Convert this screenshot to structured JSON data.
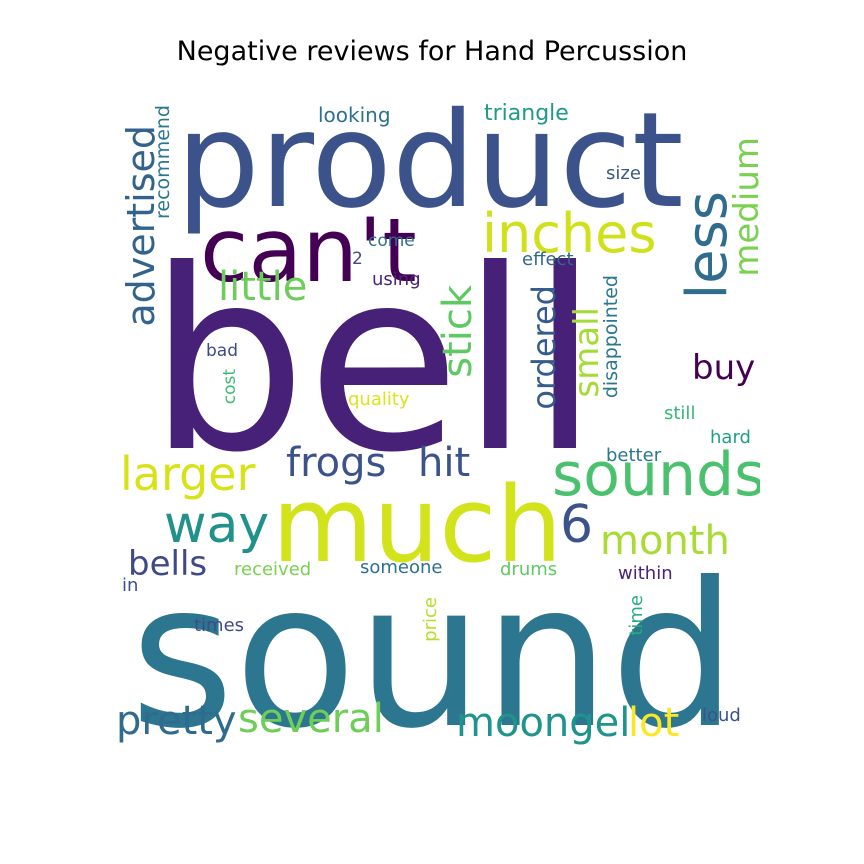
{
  "title": "Negative reviews for Hand Percussion",
  "words": {
    "bell": {
      "text": "bell",
      "color": "#472077"
    },
    "sound": {
      "text": "sound",
      "color": "#2c7690"
    },
    "product": {
      "text": "product",
      "color": "#3b528b"
    },
    "much": {
      "text": "much",
      "color": "#d2e21b"
    },
    "cant": {
      "text": "can't",
      "color": "#440154"
    },
    "inches": {
      "text": "inches",
      "color": "#d0e11c"
    },
    "less": {
      "text": "less",
      "color": "#2f6c8e"
    },
    "medium": {
      "text": "medium",
      "color": "#7ad151"
    },
    "advertised": {
      "text": "advertised",
      "color": "#33628d"
    },
    "recommend": {
      "text": "recommend",
      "color": "#2a778e"
    },
    "looking": {
      "text": "looking",
      "color": "#2d718e"
    },
    "triangle": {
      "text": "triangle",
      "color": "#1f9a8a"
    },
    "size": {
      "text": "size",
      "color": "#38598c"
    },
    "little": {
      "text": "little",
      "color": "#6ccd5a"
    },
    "stick": {
      "text": "stick",
      "color": "#5ec962"
    },
    "ordered": {
      "text": "ordered",
      "color": "#365c8d"
    },
    "small": {
      "text": "small",
      "color": "#a5db36"
    },
    "come": {
      "text": "come",
      "color": "#2e6f8e"
    },
    "two": {
      "text": "2",
      "color": "#3e4a89"
    },
    "using": {
      "text": "using",
      "color": "#482576"
    },
    "effect": {
      "text": "effect",
      "color": "#31688e"
    },
    "disappointed": {
      "text": "disappointed",
      "color": "#2a788e"
    },
    "buy": {
      "text": "buy",
      "color": "#440154"
    },
    "bad": {
      "text": "bad",
      "color": "#3e4989"
    },
    "cost": {
      "text": "cost",
      "color": "#3ebc73"
    },
    "quality": {
      "text": "quality",
      "color": "#dde318"
    },
    "still": {
      "text": "still",
      "color": "#35b779"
    },
    "hard": {
      "text": "hard",
      "color": "#1fa088"
    },
    "larger": {
      "text": "larger",
      "color": "#d8e219"
    },
    "frogs": {
      "text": "frogs",
      "color": "#3b528b"
    },
    "hit": {
      "text": "hit",
      "color": "#3b528b"
    },
    "sounds": {
      "text": "sounds",
      "color": "#4ac16d"
    },
    "better": {
      "text": "better",
      "color": "#2a788e"
    },
    "way": {
      "text": "way",
      "color": "#21918c"
    },
    "six": {
      "text": "6",
      "color": "#3b528b"
    },
    "month": {
      "text": "month",
      "color": "#a8db34"
    },
    "bells": {
      "text": "bells",
      "color": "#3e4989"
    },
    "received": {
      "text": "received",
      "color": "#7ad151"
    },
    "someone": {
      "text": "someone",
      "color": "#2c718e"
    },
    "drums": {
      "text": "drums",
      "color": "#5ec962"
    },
    "within": {
      "text": "within",
      "color": "#482475"
    },
    "in": {
      "text": "in",
      "color": "#3b528b"
    },
    "times": {
      "text": "times",
      "color": "#3e4c8a"
    },
    "price": {
      "text": "price",
      "color": "#b5de2b"
    },
    "time": {
      "text": "time",
      "color": "#26ad81"
    },
    "pretty": {
      "text": "pretty",
      "color": "#2f6b8e"
    },
    "several": {
      "text": "several",
      "color": "#6ece58"
    },
    "moongel": {
      "text": "moongel",
      "color": "#1f948c"
    },
    "lot": {
      "text": "lot",
      "color": "#fde725"
    },
    "loud": {
      "text": "loud",
      "color": "#3b528b"
    }
  }
}
